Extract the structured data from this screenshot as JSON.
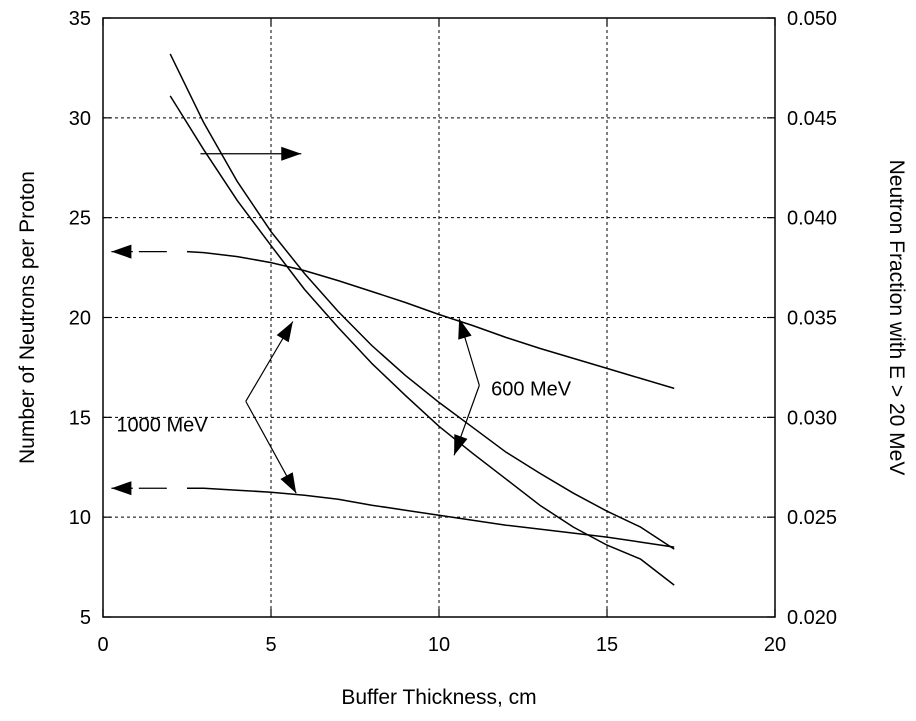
{
  "chart_data": {
    "type": "line",
    "title": "",
    "xlabel": "Buffer Thickness, cm",
    "ylabel": "Number of Neutrons per Proton",
    "y2label": "Neutron Fraction with E > 20 MeV",
    "xlim": [
      0,
      20
    ],
    "ylim": [
      5,
      35
    ],
    "y2lim": [
      0.02,
      0.05
    ],
    "grid": true,
    "x_ticks": [
      "0",
      "5",
      "10",
      "15",
      "20"
    ],
    "y_ticks": [
      "5",
      "10",
      "15",
      "20",
      "25",
      "30",
      "35"
    ],
    "y2_ticks": [
      "0.020",
      "0.025",
      "0.030",
      "0.035",
      "0.040",
      "0.045",
      "0.050"
    ],
    "series": [
      {
        "name": "600 MeV",
        "axis": "left",
        "x": [
          2.5,
          3,
          4,
          5,
          6,
          7,
          8,
          9,
          10,
          11,
          12,
          13,
          14,
          15,
          16,
          17
        ],
        "y": [
          23.3,
          23.25,
          23.05,
          22.75,
          22.35,
          21.85,
          21.3,
          20.75,
          20.15,
          19.6,
          19.0,
          18.45,
          17.95,
          17.45,
          16.95,
          16.45
        ]
      },
      {
        "name": "1000 MeV",
        "axis": "left",
        "x": [
          2.5,
          3,
          4,
          5,
          6,
          7,
          8,
          9,
          10,
          11,
          12,
          13,
          14,
          15,
          16,
          17
        ],
        "y": [
          11.45,
          11.45,
          11.35,
          11.25,
          11.1,
          10.9,
          10.6,
          10.35,
          10.1,
          9.85,
          9.6,
          9.4,
          9.2,
          9.0,
          8.75,
          8.5
        ]
      },
      {
        "name": "600 MeV",
        "axis": "right",
        "x": [
          2.0,
          3,
          4,
          5,
          6,
          7,
          8,
          9,
          10,
          11,
          12,
          13,
          14,
          15,
          16,
          17
        ],
        "y": [
          0.0482,
          0.04475,
          0.0418,
          0.0393,
          0.0372,
          0.0353,
          0.0336,
          0.0321,
          0.03075,
          0.0295,
          0.02825,
          0.0272,
          0.0262,
          0.0253,
          0.0245,
          0.0234
        ]
      },
      {
        "name": "1000 MeV",
        "axis": "right",
        "x": [
          2.0,
          3,
          4,
          5,
          6,
          7,
          8,
          9,
          10,
          11,
          12,
          13,
          14,
          15,
          16,
          17
        ],
        "y": [
          0.0461,
          0.0434,
          0.04085,
          0.0386,
          0.0364,
          0.0345,
          0.0327,
          0.0311,
          0.02955,
          0.0282,
          0.0269,
          0.0256,
          0.0245,
          0.0236,
          0.0229,
          0.0216
        ]
      }
    ],
    "annotations": [
      {
        "text": "600 MeV"
      },
      {
        "text": "1000 MeV"
      }
    ]
  }
}
